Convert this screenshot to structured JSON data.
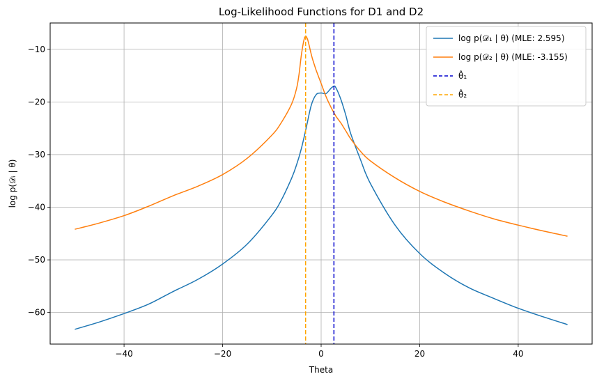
{
  "chart_data": {
    "type": "line",
    "title": "Log-Likelihood Functions for D1 and D2",
    "xlabel": "Theta",
    "ylabel": "log p(𝒟ᵢ | θ)",
    "xlim": [
      -55,
      55
    ],
    "ylim": [
      -66,
      -5
    ],
    "xticks": [
      -40,
      -20,
      0,
      20,
      40
    ],
    "yticks": [
      -60,
      -50,
      -40,
      -30,
      -20,
      -10
    ],
    "grid": true,
    "legend_position": "top-right",
    "series": [
      {
        "name": "log p(𝒟₁ | θ) (MLE: 2.595)",
        "color": "#1f77b4",
        "x": [
          -50,
          -45,
          -40,
          -35,
          -30,
          -25,
          -20,
          -15,
          -10,
          -8,
          -6,
          -5,
          -4,
          -3,
          -2,
          -1,
          0,
          1,
          2,
          2.6,
          3,
          4,
          5,
          6,
          8,
          10,
          15,
          20,
          25,
          30,
          35,
          40,
          45,
          50
        ],
        "y": [
          -63.2,
          -61.8,
          -60.2,
          -58.4,
          -56.0,
          -53.7,
          -50.8,
          -47.0,
          -41.5,
          -38.5,
          -34.5,
          -32.0,
          -28.8,
          -24.8,
          -20.6,
          -18.6,
          -18.3,
          -18.4,
          -17.4,
          -17.0,
          -17.3,
          -19.5,
          -22.5,
          -26.0,
          -31.0,
          -35.5,
          -43.4,
          -48.8,
          -52.5,
          -55.3,
          -57.3,
          -59.2,
          -60.8,
          -62.3
        ]
      },
      {
        "name": "log p(𝒟₂ | θ) (MLE: -3.155)",
        "color": "#ff7f0e",
        "x": [
          -50,
          -45,
          -40,
          -35,
          -30,
          -25,
          -20,
          -15,
          -10,
          -8,
          -6,
          -5,
          -4.5,
          -4,
          -3.5,
          -3.155,
          -2.8,
          -2.5,
          -2,
          -1.5,
          -1,
          0,
          1,
          2,
          3,
          4,
          5,
          6,
          8,
          10,
          15,
          20,
          25,
          30,
          35,
          40,
          45,
          50
        ],
        "y": [
          -44.2,
          -43.0,
          -41.6,
          -39.8,
          -37.8,
          -36.0,
          -33.8,
          -30.7,
          -26.3,
          -23.8,
          -20.4,
          -17.5,
          -14.8,
          -11.0,
          -8.3,
          -7.5,
          -8.0,
          -9.0,
          -11.0,
          -12.6,
          -14.0,
          -16.5,
          -19.0,
          -21.0,
          -22.7,
          -24.0,
          -25.5,
          -27.0,
          -29.4,
          -31.2,
          -34.4,
          -37.0,
          -39.0,
          -40.7,
          -42.2,
          -43.4,
          -44.5,
          -45.5
        ]
      }
    ],
    "vlines": [
      {
        "name": "θ̂₁",
        "x": 2.595,
        "color": "#0000cd",
        "style": "dashed"
      },
      {
        "name": "θ̂₂",
        "x": -3.155,
        "color": "#ffa500",
        "style": "dashed"
      }
    ]
  }
}
